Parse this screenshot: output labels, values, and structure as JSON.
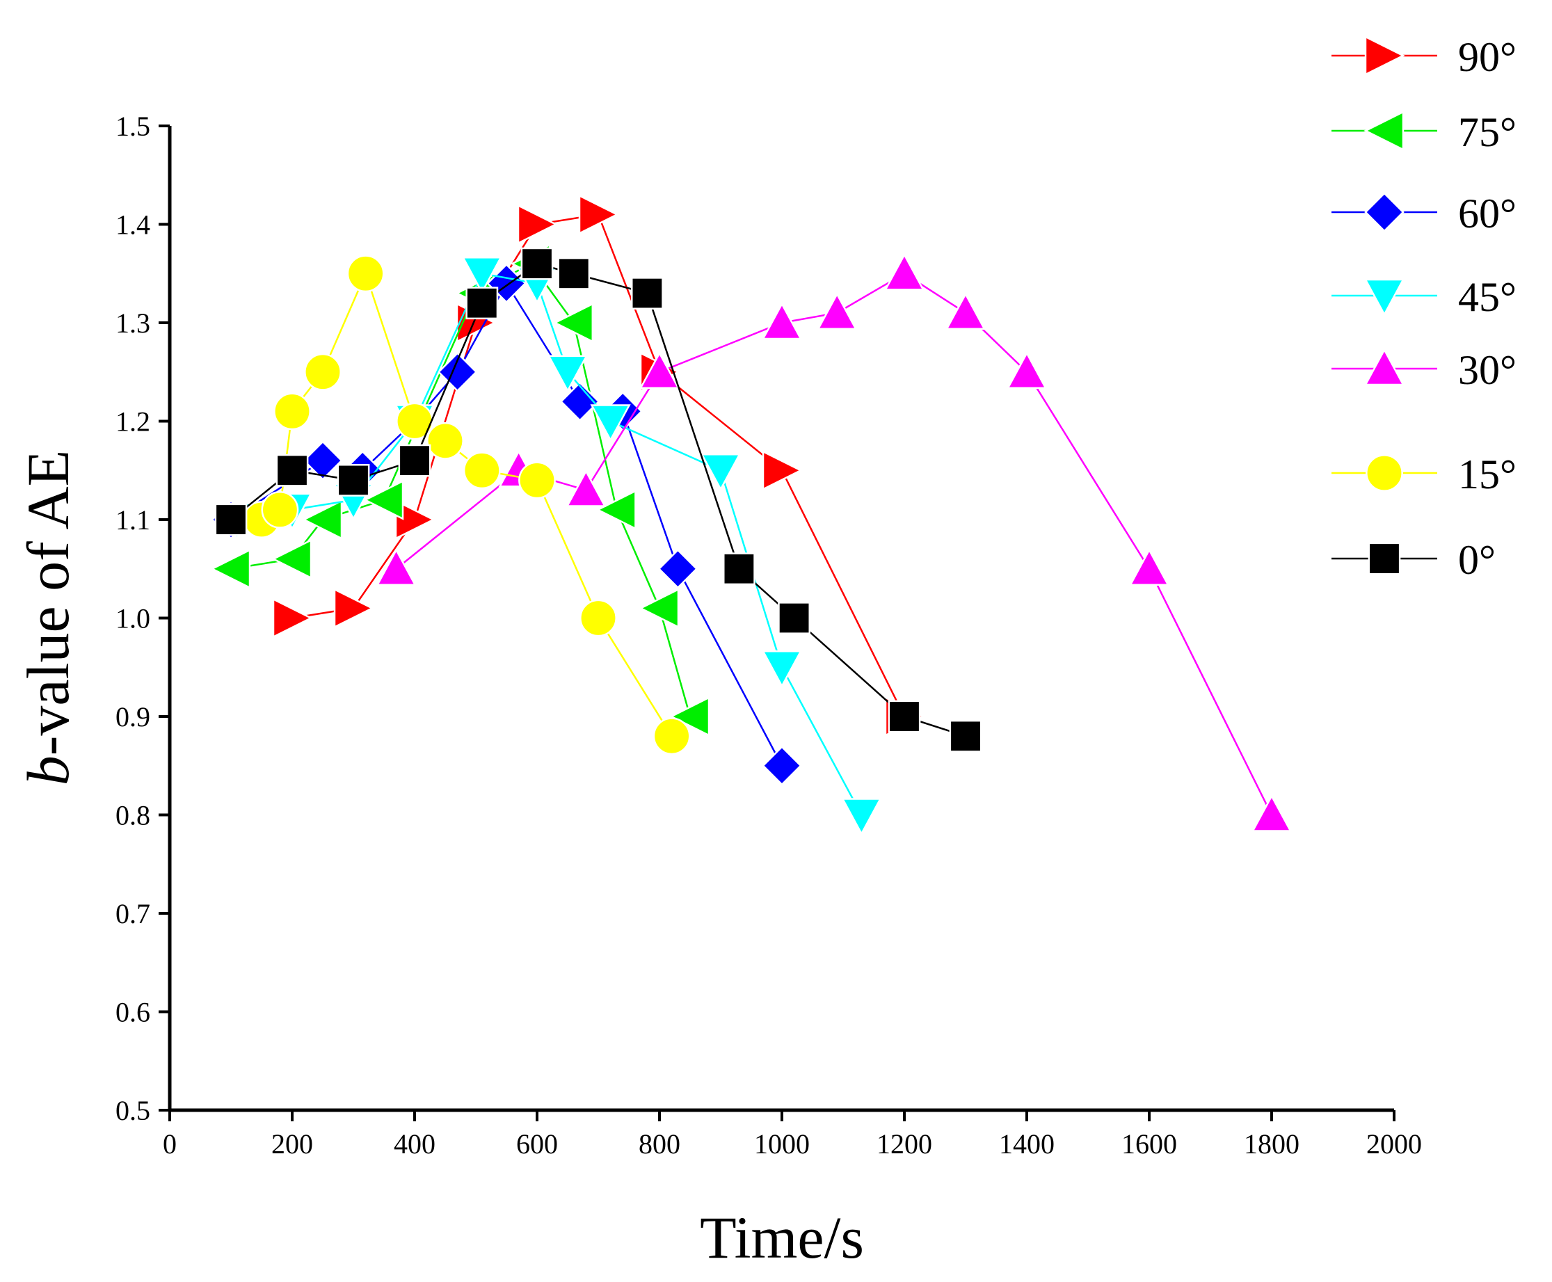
{
  "chart_data": {
    "type": "line",
    "title": "",
    "xlabel": "Time/s",
    "ylabel_italic": "b",
    "ylabel_rest": "-value of AE",
    "xlim": [
      0,
      2000
    ],
    "ylim": [
      0.5,
      1.5
    ],
    "xticks": [
      0,
      200,
      400,
      600,
      800,
      1000,
      1200,
      1400,
      1600,
      1800,
      2000
    ],
    "yticks": [
      0.5,
      0.6,
      0.7,
      0.8,
      0.9,
      1.0,
      1.1,
      1.2,
      1.3,
      1.4,
      1.5
    ],
    "xtick_labels": [
      "0",
      "200",
      "400",
      "600",
      "800",
      "1000",
      "1200",
      "1400",
      "1600",
      "1800",
      "2000"
    ],
    "ytick_labels": [
      "0.5",
      "0.6",
      "0.7",
      "0.8",
      "0.9",
      "1.0",
      "1.1",
      "1.2",
      "1.3",
      "1.4",
      "1.5"
    ],
    "legend_position": "right, outside plot",
    "series": [
      {
        "name": "90°",
        "color": "#ff0000",
        "marker": "triangle-right",
        "x": [
          200,
          300,
          400,
          500,
          600,
          700,
          800,
          1000,
          1200
        ],
        "y": [
          1.0,
          1.01,
          1.1,
          1.3,
          1.4,
          1.41,
          1.25,
          1.15,
          0.9
        ]
      },
      {
        "name": "75°",
        "color": "#00ee00",
        "marker": "triangle-left",
        "x": [
          100,
          200,
          250,
          350,
          500,
          590,
          660,
          730,
          800,
          850
        ],
        "y": [
          1.05,
          1.06,
          1.1,
          1.12,
          1.33,
          1.36,
          1.3,
          1.11,
          1.01,
          0.9
        ]
      },
      {
        "name": "60°",
        "color": "#0000ff",
        "marker": "diamond",
        "x": [
          100,
          250,
          315,
          400,
          470,
          550,
          670,
          740,
          830,
          1000
        ],
        "y": [
          1.1,
          1.16,
          1.15,
          1.2,
          1.25,
          1.34,
          1.22,
          1.21,
          1.05,
          0.85
        ]
      },
      {
        "name": "45°",
        "color": "#00ffff",
        "marker": "triangle-down",
        "x": [
          110,
          200,
          300,
          400,
          510,
          600,
          650,
          720,
          900,
          1000,
          1130
        ],
        "y": [
          1.1,
          1.11,
          1.12,
          1.2,
          1.35,
          1.34,
          1.25,
          1.2,
          1.15,
          0.95,
          0.8
        ]
      },
      {
        "name": "30°",
        "color": "#ff00ff",
        "marker": "triangle-up",
        "x": [
          370,
          570,
          680,
          800,
          1000,
          1090,
          1200,
          1300,
          1400,
          1600,
          1800
        ],
        "y": [
          1.05,
          1.15,
          1.13,
          1.25,
          1.3,
          1.31,
          1.35,
          1.31,
          1.25,
          1.05,
          0.8
        ]
      },
      {
        "name": "15°",
        "color": "#ffff00",
        "marker": "circle",
        "x": [
          150,
          180,
          200,
          250,
          320,
          400,
          450,
          510,
          600,
          700,
          820
        ],
        "y": [
          1.1,
          1.11,
          1.21,
          1.25,
          1.35,
          1.2,
          1.18,
          1.15,
          1.14,
          1.0,
          0.88
        ]
      },
      {
        "name": "0°",
        "color": "#000000",
        "marker": "square",
        "x": [
          100,
          200,
          300,
          400,
          510,
          600,
          660,
          780,
          930,
          1020,
          1200,
          1300
        ],
        "y": [
          1.1,
          1.15,
          1.14,
          1.16,
          1.32,
          1.36,
          1.35,
          1.33,
          1.05,
          1.0,
          0.9,
          0.88
        ]
      }
    ]
  }
}
